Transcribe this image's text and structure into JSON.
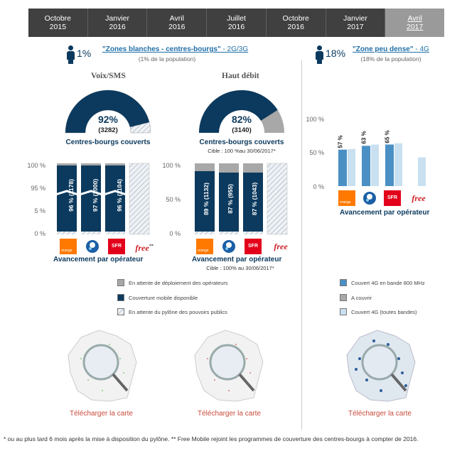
{
  "timeline": [
    {
      "month": "Octobre",
      "year": "2015"
    },
    {
      "month": "Janvier",
      "year": "2016"
    },
    {
      "month": "Avril",
      "year": "2016"
    },
    {
      "month": "Juillet",
      "year": "2016"
    },
    {
      "month": "Octobre",
      "year": "2016"
    },
    {
      "month": "Janvier",
      "year": "2017"
    },
    {
      "month": "Avril",
      "year": "2017"
    }
  ],
  "zone1": {
    "pct": "1%",
    "title": "\"Zones blanches - centres-bourgs\"",
    "suffix": " - 2G/3G",
    "sub": "(1% de la population)"
  },
  "zone2": {
    "pct": "18%",
    "title": "\"Zone peu dense\"",
    "suffix": " - 4G",
    "sub": "(18% de la population)"
  },
  "voix": {
    "title": "Voix/SMS",
    "gauge_pct": "92%",
    "gauge_count": "(3282)",
    "gauge_label": "Centres-bourgs couverts",
    "axis": [
      "100 %",
      "95 %",
      "5 %",
      "0 %"
    ],
    "bars": [
      "96 % (1178)",
      "97 % (1000)",
      "96 % (1104)"
    ],
    "progress": "Avancement par opérateur"
  },
  "haut": {
    "title": "Haut débit",
    "gauge_pct": "82%",
    "gauge_count": "(3140)",
    "gauge_label": "Centres-bourgs couverts",
    "gauge_note": "Cible : 100 %au 30/06/2017*",
    "axis": [
      "100 %",
      "50 %",
      "0 %"
    ],
    "bars": [
      "89 % (1132)",
      "87 % (955)",
      "87 % (1043)"
    ],
    "progress": "Avancement par opérateur",
    "progress_note": "Cible : 100% au 30/06/2017*"
  },
  "zone4g": {
    "axis": [
      "100 %",
      "50 %",
      "0 %"
    ],
    "bars": [
      "57 %",
      "63 %",
      "65 %"
    ],
    "progress": "Avancement par opérateur"
  },
  "operators": {
    "orange": "orange",
    "sfr": "SFR",
    "free": "free",
    "free_sup": "**"
  },
  "legend_left": [
    "En attente de déploiement des opérateurs",
    "Couverture mobile disponible",
    "En attente du pylône des pouvoirs publics"
  ],
  "legend_right": [
    "Couvert 4G en bande 800 MHz",
    "A couvrir",
    "Couvert 4G (toutes bandes)"
  ],
  "download": "Télécharger la carte",
  "footer": "* ou au plus tard 6 mois après la mise à disposition du pylône.    ** Free Mobile rejoint les programmes de couverture des centres-bourgs à compter de 2016.",
  "colors": {
    "navy": "#0c3a5e",
    "grey": "#a0a0a0",
    "blue": "#4a90c4",
    "lightblue": "#c8e0f0"
  },
  "chart_data": [
    {
      "type": "bar",
      "title": "Voix/SMS",
      "categories": [
        "orange",
        "Bouygues",
        "SFR",
        "free"
      ],
      "values": [
        96,
        97,
        96,
        null
      ],
      "counts": [
        1178,
        1000,
        1104,
        null
      ],
      "ylim": [
        0,
        100
      ]
    },
    {
      "type": "bar",
      "title": "Haut débit",
      "categories": [
        "orange",
        "Bouygues",
        "SFR",
        "free"
      ],
      "values": [
        89,
        87,
        87,
        null
      ],
      "counts": [
        1132,
        955,
        1043,
        null
      ],
      "ylim": [
        0,
        100
      ]
    },
    {
      "type": "bar",
      "title": "",
      "categories": [
        "orange",
        "Bouygues",
        "SFR",
        "free"
      ],
      "series": [
        {
          "name": "Couvert 4G en bande 800 MHz",
          "values": [
            57,
            63,
            65,
            0
          ]
        },
        {
          "name": "Couvert 4G (toutes bandes)",
          "values": [
            58,
            65,
            67,
            45
          ]
        }
      ],
      "ylim": [
        0,
        100
      ]
    }
  ]
}
